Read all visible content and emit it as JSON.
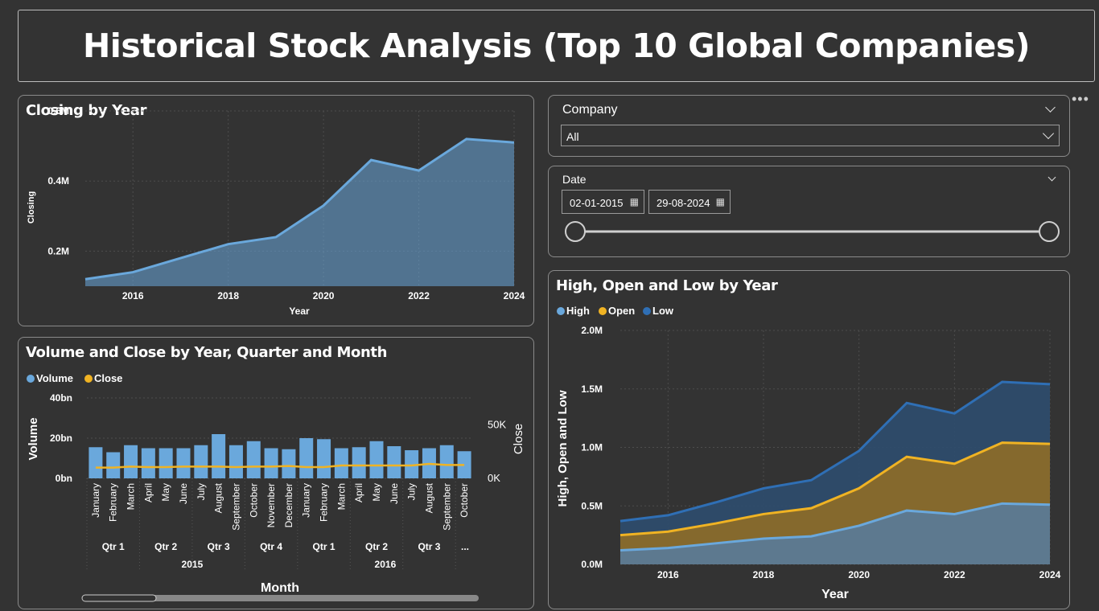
{
  "header": {
    "title": "Historical Stock Analysis (Top 10 Global Companies)"
  },
  "more_options": "•••",
  "closing_chart": {
    "title": "Closing by Year",
    "xlabel": "Year",
    "ylabel": "Closing",
    "y_ticks": [
      "0.2M",
      "0.4M",
      "0.6M"
    ],
    "x_ticks": [
      "2016",
      "2018",
      "2020",
      "2022",
      "2024"
    ]
  },
  "volume_chart": {
    "title": "Volume and Close by Year, Quarter and Month",
    "legend": [
      {
        "name": "Volume",
        "color": "#6aa8dc"
      },
      {
        "name": "Close",
        "color": "#f0b323"
      }
    ],
    "xlabel": "Month",
    "ylabel_left": "Volume",
    "ylabel_right": "Close",
    "y_ticks_left": [
      "0bn",
      "20bn",
      "40bn"
    ],
    "y_ticks_right": [
      "0K",
      "50K"
    ],
    "quarters": [
      "Qtr 1",
      "Qtr 2",
      "Qtr 3",
      "Qtr 4",
      "Qtr 1",
      "Qtr 2",
      "Qtr 3",
      "..."
    ],
    "years": [
      "2015",
      "2016"
    ]
  },
  "company_slicer": {
    "label": "Company",
    "value": "All"
  },
  "date_slicer": {
    "label": "Date",
    "start": "02-01-2015",
    "end": "29-08-2024",
    "calendar_icon": "calendar-icon"
  },
  "hol_chart": {
    "title": "High, Open and Low by Year",
    "legend": [
      {
        "name": "High",
        "color": "#6aa8dc"
      },
      {
        "name": "Open",
        "color": "#f0b323"
      },
      {
        "name": "Low",
        "color": "#2f6fb5"
      }
    ],
    "xlabel": "Year",
    "ylabel": "High, Open and Low",
    "y_ticks": [
      "0.0M",
      "0.5M",
      "1.0M",
      "1.5M",
      "2.0M"
    ],
    "x_ticks": [
      "2016",
      "2018",
      "2020",
      "2022",
      "2024"
    ]
  },
  "chart_data": [
    {
      "type": "area",
      "title": "Closing by Year",
      "xlabel": "Year",
      "ylabel": "Closing",
      "x": [
        2015,
        2016,
        2017,
        2018,
        2019,
        2020,
        2021,
        2022,
        2023,
        2024
      ],
      "values": [
        0.12,
        0.14,
        0.18,
        0.22,
        0.24,
        0.33,
        0.46,
        0.43,
        0.52,
        0.51
      ],
      "unit": "M",
      "xlim": [
        2015,
        2024
      ],
      "ylim": [
        0.1,
        0.6
      ],
      "color": "#6aa8dc"
    },
    {
      "type": "bar",
      "title": "Volume and Close by Year, Quarter and Month",
      "categories": [
        "January",
        "February",
        "March",
        "April",
        "May",
        "June",
        "July",
        "August",
        "September",
        "October",
        "November",
        "December",
        "January",
        "February",
        "March",
        "April",
        "May",
        "June",
        "July",
        "August",
        "September",
        "October"
      ],
      "series": [
        {
          "name": "Volume",
          "axis": "left",
          "unit": "bn",
          "values": [
            15.5,
            13,
            16.5,
            15,
            15,
            15,
            16.5,
            22,
            16.5,
            18.5,
            15,
            14.5,
            20,
            19.5,
            15,
            15.5,
            18.5,
            16,
            14,
            15,
            16.5,
            13.5
          ]
        },
        {
          "name": "Close",
          "axis": "right",
          "unit": "K",
          "values": [
            10,
            10,
            11,
            10.5,
            10.5,
            11,
            11,
            11,
            10.5,
            11,
            11,
            11.5,
            10.5,
            10.5,
            12,
            12,
            12,
            12,
            12,
            13.5,
            12.5,
            12.5
          ]
        }
      ],
      "ylim_left": [
        0,
        40
      ],
      "ylim_right": [
        0,
        75
      ]
    },
    {
      "type": "area",
      "title": "High, Open and Low by Year",
      "xlabel": "Year",
      "ylabel": "High, Open and Low",
      "x": [
        2015,
        2016,
        2017,
        2018,
        2019,
        2020,
        2021,
        2022,
        2023,
        2024
      ],
      "series": [
        {
          "name": "High",
          "values": [
            0.12,
            0.14,
            0.18,
            0.22,
            0.24,
            0.33,
            0.46,
            0.43,
            0.52,
            0.51
          ],
          "color": "#6aa8dc"
        },
        {
          "name": "Open",
          "values": [
            0.25,
            0.28,
            0.35,
            0.43,
            0.48,
            0.65,
            0.92,
            0.86,
            1.04,
            1.03
          ],
          "color": "#f0b323"
        },
        {
          "name": "Low",
          "values": [
            0.37,
            0.42,
            0.53,
            0.65,
            0.72,
            0.97,
            1.38,
            1.29,
            1.56,
            1.54
          ],
          "color": "#2f6fb5"
        }
      ],
      "unit": "M",
      "xlim": [
        2015,
        2024
      ],
      "ylim": [
        0,
        2.0
      ]
    }
  ]
}
